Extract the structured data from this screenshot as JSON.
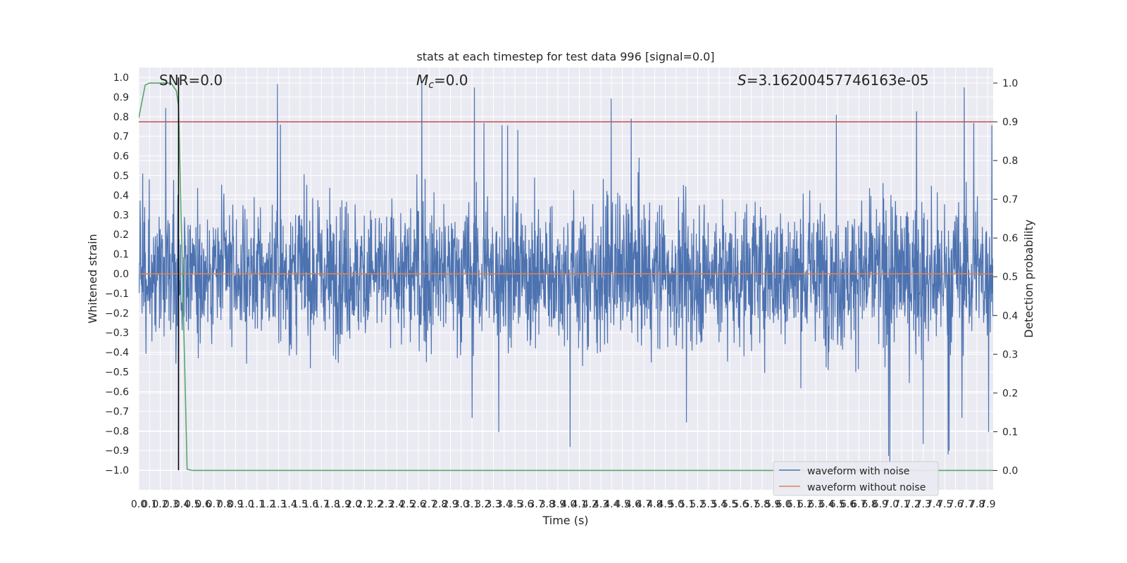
{
  "chart_data": {
    "type": "line",
    "title": "stats at each timestep for test data 996 [signal=0.0]",
    "xlabel": "Time (s)",
    "ylabel_left": "Whitened strain",
    "ylabel_right": "Detection probability",
    "xlim": [
      0.0,
      7.95
    ],
    "ylim_left": [
      -1.1,
      1.05
    ],
    "ylim_right": [
      -0.05,
      1.04
    ],
    "grid": true,
    "legend_position": "lower-right",
    "annotations": {
      "snr": "SNR=0.0",
      "mc_symbol": "M",
      "mc_sub": "c",
      "mc_value": "=0.0",
      "s_symbol": "S",
      "s_value": "=3.16200457746163e-05"
    },
    "x_ticks": [
      "0.0",
      "0.1",
      "0.2",
      "0.3",
      "0.4",
      "0.5",
      "0.6",
      "0.7",
      "0.8",
      "0.9",
      "1.0",
      "1.1",
      "1.2",
      "1.3",
      "1.4",
      "1.5",
      "1.6",
      "1.7",
      "1.8",
      "1.9",
      "2.0",
      "2.1",
      "2.2",
      "2.3",
      "2.4",
      "2.5",
      "2.6",
      "2.7",
      "2.8",
      "2.9",
      "3.0",
      "3.1",
      "3.2",
      "3.3",
      "3.4",
      "3.5",
      "3.6",
      "3.7",
      "3.8",
      "3.9",
      "4.0",
      "4.1",
      "4.2",
      "4.3",
      "4.4",
      "4.5",
      "4.6",
      "4.7",
      "4.8",
      "4.9",
      "5.0",
      "5.1",
      "5.2",
      "5.3",
      "5.4",
      "5.5",
      "5.6",
      "5.7",
      "5.8",
      "5.9",
      "6.0",
      "6.1",
      "6.2",
      "6.3",
      "6.4",
      "6.5",
      "6.6",
      "6.7",
      "6.8",
      "6.9",
      "7.0",
      "7.1",
      "7.2",
      "7.3",
      "7.4",
      "7.5",
      "7.6",
      "7.7",
      "7.8",
      "7.9"
    ],
    "left_ticks": [
      "1.0",
      "0.9",
      "0.8",
      "0.7",
      "0.6",
      "0.5",
      "0.4",
      "0.3",
      "0.2",
      "0.1",
      "0.0",
      "−0.1",
      "−0.2",
      "−0.3",
      "−0.4",
      "−0.5",
      "−0.6",
      "−0.7",
      "−0.8",
      "−0.9",
      "−1.0"
    ],
    "right_ticks": [
      "1.0",
      "0.9",
      "0.8",
      "0.7",
      "0.6",
      "0.5",
      "0.4",
      "0.3",
      "0.2",
      "0.1",
      "0.0"
    ],
    "series": [
      {
        "name": "waveform with noise",
        "color": "#4c72b0",
        "axis": "left",
        "description": "dense noise, envelope approx ±0.5 with spikes to ±1.0"
      },
      {
        "name": "waveform without noise",
        "color": "#dd8452",
        "axis": "left",
        "values_const": 0.0
      },
      {
        "name": "",
        "color": "#55a868",
        "axis": "right",
        "x": [
          0.0,
          0.06,
          0.1,
          0.2,
          0.3,
          0.35,
          0.37,
          0.45,
          0.5,
          7.95
        ],
        "y": [
          0.91,
          0.995,
          1.0,
          1.0,
          1.0,
          0.98,
          0.94,
          0.003,
          0.0,
          0.0
        ]
      }
    ],
    "threshold_line": {
      "value": 0.9,
      "color": "#c44e52",
      "axis": "right"
    },
    "marker_line": {
      "x": 0.37,
      "y_from": -1.0,
      "y_to": 1.0,
      "color": "#000000"
    }
  }
}
